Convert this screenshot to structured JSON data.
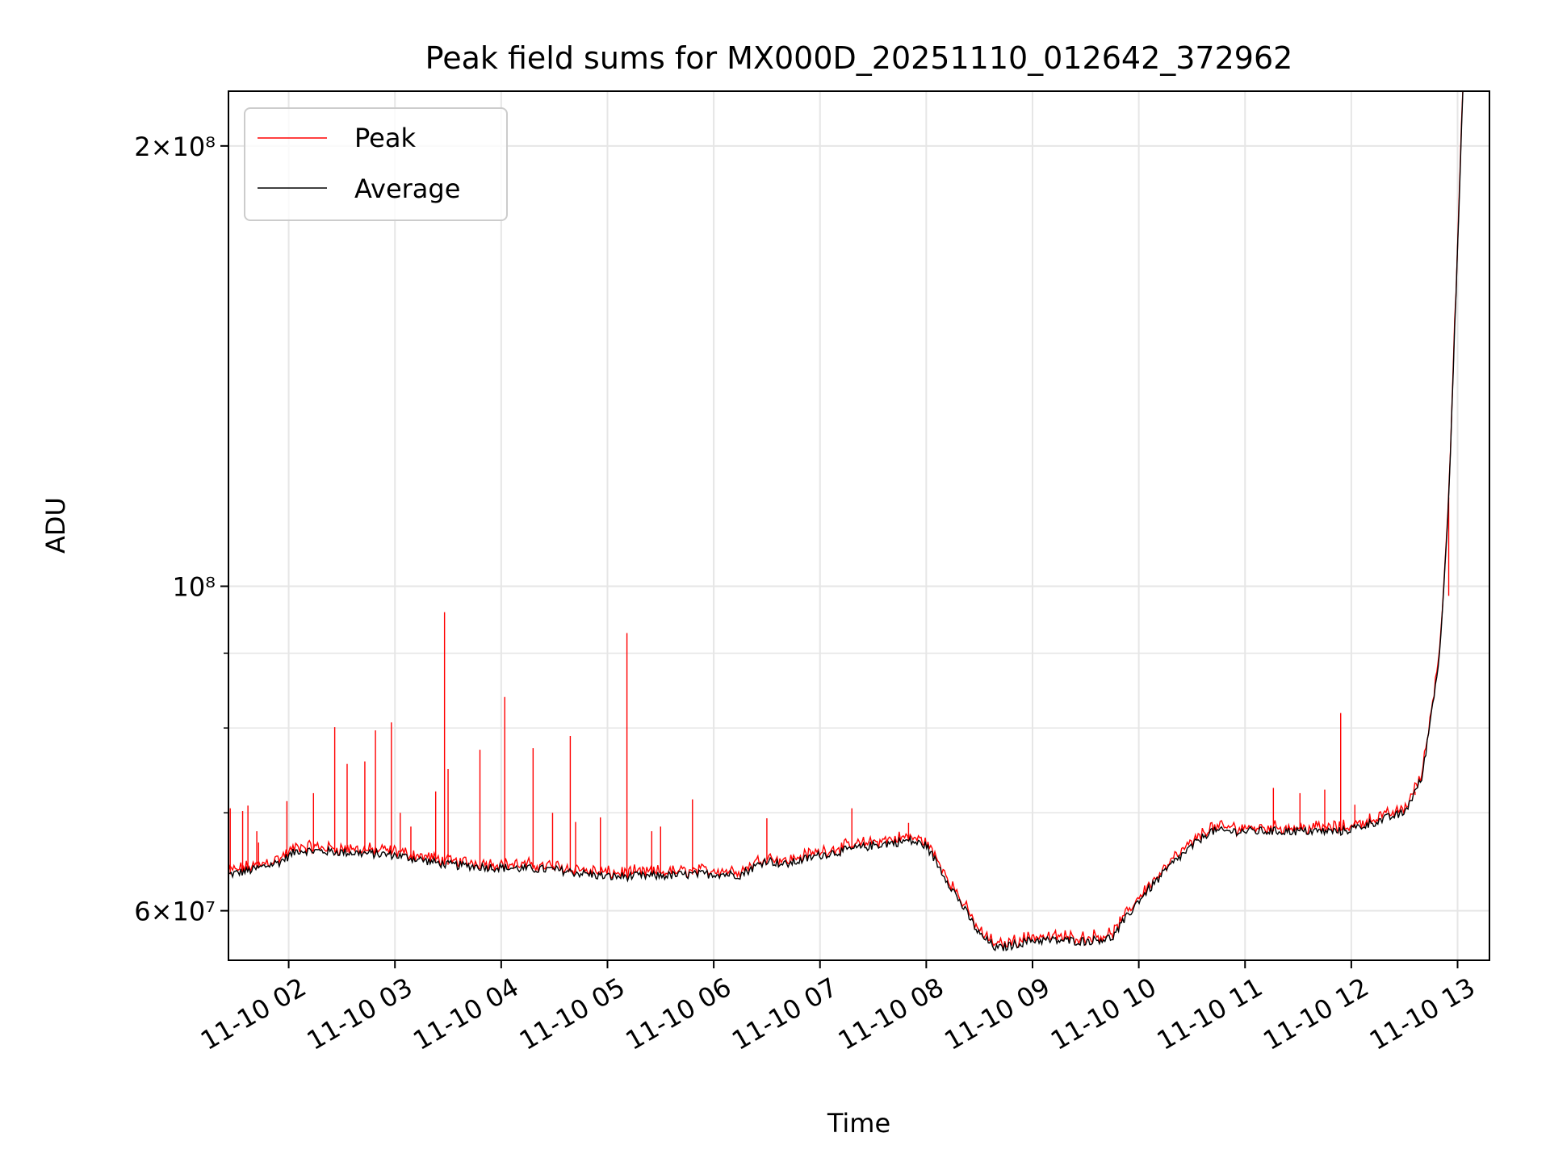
{
  "chart_data": {
    "type": "line",
    "title": "Peak field sums for MX000D_20251110_012642_372962",
    "xlabel": "Time",
    "ylabel": "ADU",
    "yscale": "log",
    "xlim": [
      "2025-11-10 01:26",
      "2025-11-10 13:18"
    ],
    "ylim": [
      55500000,
      218000000
    ],
    "grid": true,
    "legend_position": "top-left",
    "x_tick_labels": [
      "11-10 02",
      "11-10 03",
      "11-10 04",
      "11-10 05",
      "11-10 06",
      "11-10 07",
      "11-10 08",
      "11-10 09",
      "11-10 10",
      "11-10 11",
      "11-10 12",
      "11-10 13"
    ],
    "x_ticks": [
      "2025-11-10 02:00",
      "2025-11-10 03:00",
      "2025-11-10 04:00",
      "2025-11-10 05:00",
      "2025-11-10 06:00",
      "2025-11-10 07:00",
      "2025-11-10 08:00",
      "2025-11-10 09:00",
      "2025-11-10 10:00",
      "2025-11-10 11:00",
      "2025-11-10 12:00",
      "2025-11-10 13:00"
    ],
    "y_major_ticks": [
      {
        "value": 60000000,
        "label": "6×10⁷"
      },
      {
        "value": 100000000,
        "label": "10⁸"
      },
      {
        "value": 200000000,
        "label": "2×10⁸"
      }
    ],
    "y_minor_ticks": [
      70000000,
      80000000,
      90000000
    ],
    "series": [
      {
        "name": "Peak",
        "color": "#ff0000",
        "baseline_source": "Average",
        "x": [
          "2025-11-10 01:27",
          "2025-11-10 01:34",
          "2025-11-10 01:37",
          "2025-11-10 01:42",
          "2025-11-10 01:43",
          "2025-11-10 01:59",
          "2025-11-10 02:14",
          "2025-11-10 02:26",
          "2025-11-10 02:33",
          "2025-11-10 02:43",
          "2025-11-10 02:49",
          "2025-11-10 02:58",
          "2025-11-10 03:03",
          "2025-11-10 03:09",
          "2025-11-10 03:23",
          "2025-11-10 03:28",
          "2025-11-10 03:30",
          "2025-11-10 03:48",
          "2025-11-10 04:02",
          "2025-11-10 04:18",
          "2025-11-10 04:29",
          "2025-11-10 04:39",
          "2025-11-10 04:42",
          "2025-11-10 04:56",
          "2025-11-10 05:11",
          "2025-11-10 05:25",
          "2025-11-10 05:30",
          "2025-11-10 05:48",
          "2025-11-10 06:30",
          "2025-11-10 07:18",
          "2025-11-10 07:50",
          "2025-11-10 11:16",
          "2025-11-10 11:31",
          "2025-11-10 11:45",
          "2025-11-10 11:54",
          "2025-11-10 12:02",
          "2025-11-10 12:36",
          "2025-11-10 12:55"
        ],
        "values": [
          70500000,
          70200000,
          70800000,
          68000000,
          66800000,
          71300000,
          72200000,
          80100000,
          75600000,
          75900000,
          79700000,
          80700000,
          70000000,
          68500000,
          72400000,
          96000000,
          75000000,
          77300000,
          84000000,
          77500000,
          70000000,
          79000000,
          69000000,
          69500000,
          92900000,
          68000000,
          68500000,
          71500000,
          69400000,
          70500000,
          68900000,
          72800000,
          72200000,
          72600000,
          81900000,
          70900000,
          72000000,
          98500000
        ]
      },
      {
        "name": "Average",
        "color": "#000000",
        "x": [
          "2025-11-10 01:26",
          "2025-11-10 01:40",
          "2025-11-10 01:55",
          "2025-11-10 02:05",
          "2025-11-10 02:30",
          "2025-11-10 03:00",
          "2025-11-10 03:30",
          "2025-11-10 04:00",
          "2025-11-10 04:30",
          "2025-11-10 05:00",
          "2025-11-10 05:30",
          "2025-11-10 06:00",
          "2025-11-10 06:15",
          "2025-11-10 06:30",
          "2025-11-10 06:40",
          "2025-11-10 07:00",
          "2025-11-10 07:30",
          "2025-11-10 07:50",
          "2025-11-10 08:00",
          "2025-11-10 08:15",
          "2025-11-10 08:30",
          "2025-11-10 08:40",
          "2025-11-10 09:00",
          "2025-11-10 09:30",
          "2025-11-10 09:45",
          "2025-11-10 10:00",
          "2025-11-10 10:20",
          "2025-11-10 10:40",
          "2025-11-10 11:00",
          "2025-11-10 11:30",
          "2025-11-10 11:55",
          "2025-11-10 12:05",
          "2025-11-10 12:30",
          "2025-11-10 12:40",
          "2025-11-10 12:50",
          "2025-11-10 12:55",
          "2025-11-10 13:00",
          "2025-11-10 13:03"
        ],
        "values": [
          63500000,
          64000000,
          64800000,
          66000000,
          65800000,
          65500000,
          64500000,
          64200000,
          64000000,
          63300000,
          63400000,
          63600000,
          63500000,
          65000000,
          64500000,
          65500000,
          66500000,
          67000000,
          66500000,
          62000000,
          57800000,
          56500000,
          57300000,
          57200000,
          57500000,
          61000000,
          64800000,
          68000000,
          68000000,
          68000000,
          68000000,
          68500000,
          70000000,
          74000000,
          90000000,
          115000000,
          170000000,
          218000000
        ]
      }
    ]
  }
}
